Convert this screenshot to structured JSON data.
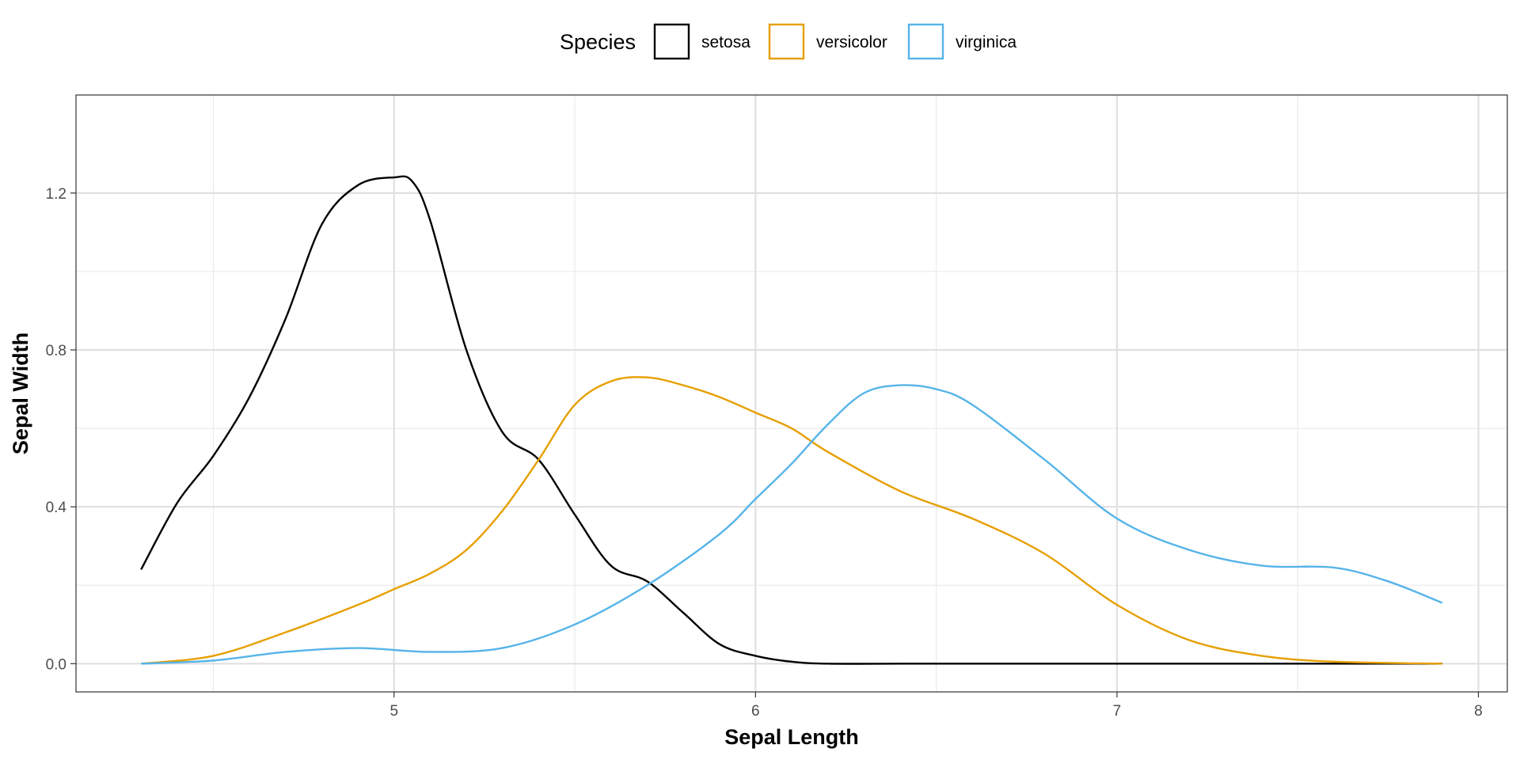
{
  "chart_data": {
    "type": "line",
    "title": "",
    "xlabel": "Sepal Length",
    "ylabel": "Sepal Width",
    "xlim": [
      4.12,
      8.08
    ],
    "ylim": [
      -0.072,
      1.45
    ],
    "x_ticks": [
      5,
      6,
      7,
      8
    ],
    "x_tick_labels": [
      "5",
      "6",
      "7",
      "8"
    ],
    "y_ticks": [
      0.0,
      0.4,
      0.8,
      1.2
    ],
    "y_tick_labels": [
      "0.0",
      "0.4",
      "0.8",
      "1.2"
    ],
    "x_minor_ticks": [
      4.5,
      5.5,
      6.5,
      7.5
    ],
    "y_minor_ticks": [
      0.2,
      0.6,
      1.0
    ],
    "grid": true,
    "legend": {
      "title": "Species",
      "position": "top"
    },
    "series": [
      {
        "name": "setosa",
        "color": "#000000",
        "x": [
          4.3,
          4.4,
          4.5,
          4.6,
          4.7,
          4.8,
          4.9,
          5.0,
          5.05,
          5.1,
          5.2,
          5.3,
          5.4,
          5.5,
          5.6,
          5.7,
          5.8,
          5.9,
          6.0,
          6.1,
          6.2,
          6.4,
          6.6,
          6.8,
          7.0,
          7.2,
          7.4,
          7.6,
          7.9
        ],
        "y": [
          0.24,
          0.41,
          0.53,
          0.68,
          0.88,
          1.12,
          1.22,
          1.24,
          1.23,
          1.13,
          0.8,
          0.59,
          0.52,
          0.38,
          0.25,
          0.21,
          0.13,
          0.05,
          0.02,
          0.005,
          0.0,
          0.0,
          0.0,
          0.0,
          0.0,
          0.0,
          0.0,
          0.0,
          0.0
        ]
      },
      {
        "name": "versicolor",
        "color": "#E69F00",
        "x": [
          4.3,
          4.5,
          4.7,
          4.9,
          5.0,
          5.1,
          5.2,
          5.3,
          5.4,
          5.5,
          5.6,
          5.7,
          5.8,
          5.9,
          6.0,
          6.1,
          6.2,
          6.4,
          6.6,
          6.8,
          7.0,
          7.2,
          7.4,
          7.6,
          7.9
        ],
        "y": [
          0.0,
          0.02,
          0.08,
          0.15,
          0.19,
          0.23,
          0.29,
          0.39,
          0.52,
          0.66,
          0.72,
          0.73,
          0.71,
          0.68,
          0.64,
          0.6,
          0.54,
          0.44,
          0.37,
          0.28,
          0.15,
          0.06,
          0.02,
          0.005,
          0.0
        ]
      },
      {
        "name": "virginica",
        "color": "#56B4E9",
        "x": [
          4.3,
          4.5,
          4.7,
          4.9,
          5.1,
          5.3,
          5.5,
          5.7,
          5.9,
          6.0,
          6.1,
          6.2,
          6.3,
          6.4,
          6.5,
          6.6,
          6.8,
          7.0,
          7.2,
          7.4,
          7.6,
          7.75,
          7.9
        ],
        "y": [
          0.0,
          0.008,
          0.03,
          0.04,
          0.03,
          0.04,
          0.1,
          0.2,
          0.33,
          0.42,
          0.51,
          0.61,
          0.69,
          0.71,
          0.7,
          0.66,
          0.52,
          0.37,
          0.29,
          0.25,
          0.245,
          0.21,
          0.155
        ]
      }
    ]
  }
}
